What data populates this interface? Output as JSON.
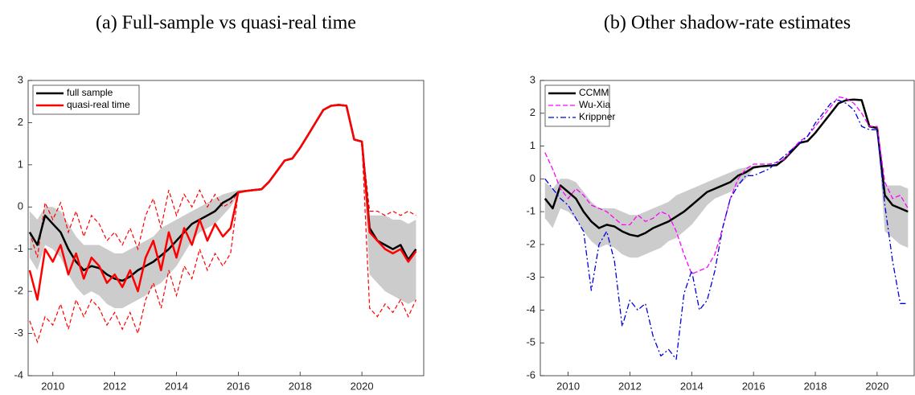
{
  "chart_data": [
    {
      "type": "line",
      "title": "(a) Full-sample vs quasi-real time",
      "x": [
        2009.25,
        2009.5,
        2009.75,
        2010,
        2010.25,
        2010.5,
        2010.75,
        2011,
        2011.25,
        2011.5,
        2011.75,
        2012,
        2012.25,
        2012.5,
        2012.75,
        2013,
        2013.25,
        2013.5,
        2013.75,
        2014,
        2014.25,
        2014.5,
        2014.75,
        2015,
        2015.25,
        2015.5,
        2015.75,
        2016,
        2016.25,
        2016.5,
        2016.75,
        2017,
        2017.25,
        2017.5,
        2017.75,
        2018,
        2018.25,
        2018.5,
        2018.75,
        2019,
        2019.25,
        2019.5,
        2019.75,
        2020,
        2020.25,
        2020.5,
        2020.75,
        2021,
        2021.25,
        2021.5,
        2021.75
      ],
      "xlim": [
        2009.2,
        2022
      ],
      "xticks": [
        2010,
        2012,
        2014,
        2016,
        2018,
        2020
      ],
      "ylim": [
        -4,
        3
      ],
      "yticks": [
        -4,
        -3,
        -2,
        -1,
        0,
        1,
        2,
        3
      ],
      "legend": "top-left",
      "series": [
        {
          "name": "full sample",
          "color": "#000000",
          "line_width": 2.5,
          "dash": "none",
          "values": [
            -0.6,
            -0.9,
            -0.2,
            -0.4,
            -0.6,
            -1.0,
            -1.3,
            -1.5,
            -1.4,
            -1.45,
            -1.6,
            -1.7,
            -1.75,
            -1.65,
            -1.5,
            -1.4,
            -1.3,
            -1.15,
            -1.0,
            -0.8,
            -0.6,
            -0.4,
            -0.3,
            -0.2,
            -0.1,
            0.1,
            0.2,
            0.35,
            0.38,
            0.4,
            0.42,
            0.6,
            0.85,
            1.1,
            1.15,
            1.4,
            1.7,
            2.0,
            2.3,
            2.4,
            2.42,
            2.4,
            1.6,
            1.55,
            -0.5,
            -0.8,
            -0.9,
            -1.0,
            -0.9,
            -1.25,
            -1.0
          ],
          "band_color": "#cccccc",
          "band_upper": [
            -0.1,
            -0.3,
            0.0,
            0.0,
            -0.1,
            -0.4,
            -0.7,
            -0.9,
            -0.9,
            -0.9,
            -1.0,
            -1.1,
            -1.1,
            -1.0,
            -0.9,
            -0.8,
            -0.7,
            -0.5,
            -0.4,
            -0.3,
            -0.2,
            -0.1,
            0.0,
            0.1,
            0.2,
            0.3,
            0.35,
            0.4,
            0.4,
            0.42,
            0.45,
            0.62,
            0.87,
            1.12,
            1.17,
            1.42,
            1.72,
            2.02,
            2.32,
            2.42,
            2.44,
            2.42,
            1.62,
            1.57,
            -0.2,
            -0.2,
            -0.2,
            -0.3,
            -0.3,
            -0.4,
            -0.3
          ],
          "band_lower": [
            -1.2,
            -1.5,
            -0.9,
            -1.0,
            -1.2,
            -1.6,
            -1.9,
            -2.1,
            -2.0,
            -2.1,
            -2.3,
            -2.4,
            -2.4,
            -2.3,
            -2.2,
            -2.1,
            -1.9,
            -1.8,
            -1.6,
            -1.4,
            -1.1,
            -0.8,
            -0.6,
            -0.5,
            -0.4,
            -0.2,
            0.0,
            0.3,
            0.36,
            0.38,
            0.4,
            0.58,
            0.83,
            1.08,
            1.13,
            1.38,
            1.68,
            1.98,
            2.28,
            2.38,
            2.4,
            2.38,
            1.58,
            1.53,
            -1.6,
            -1.8,
            -2.0,
            -2.1,
            -2.2,
            -2.3,
            -2.2
          ]
        },
        {
          "name": "quasi-real time",
          "color": "#ff0000",
          "line_width": 2.5,
          "dash": "none",
          "values": [
            -1.5,
            -2.2,
            -1.0,
            -1.3,
            -0.9,
            -1.6,
            -1.1,
            -1.7,
            -1.2,
            -1.4,
            -1.8,
            -1.6,
            -1.9,
            -1.5,
            -2.0,
            -1.2,
            -0.8,
            -1.5,
            -0.6,
            -1.2,
            -0.5,
            -0.9,
            -0.3,
            -0.8,
            -0.4,
            -0.7,
            -0.5,
            0.35,
            0.38,
            0.4,
            0.42,
            0.6,
            0.85,
            1.1,
            1.15,
            1.4,
            1.7,
            2.0,
            2.3,
            2.4,
            2.42,
            2.4,
            1.6,
            1.55,
            -0.6,
            -0.8,
            -1.0,
            -1.1,
            -1.0,
            -1.3,
            -1.05
          ],
          "bound_dash": "5,3",
          "bound_upper": [
            -0.6,
            -1.2,
            0.1,
            -0.3,
            0.1,
            -0.6,
            -0.1,
            -0.7,
            -0.2,
            -0.4,
            -0.8,
            -0.6,
            -0.9,
            -0.5,
            -1.0,
            -0.2,
            0.2,
            -0.5,
            0.4,
            -0.2,
            0.3,
            0.0,
            0.4,
            0.0,
            0.3,
            0.0,
            0.1,
            0.35,
            0.38,
            0.4,
            0.42,
            0.6,
            0.85,
            1.1,
            1.15,
            1.4,
            1.7,
            2.0,
            2.3,
            2.4,
            2.42,
            2.4,
            1.6,
            1.55,
            -0.1,
            -0.1,
            -0.2,
            -0.1,
            -0.2,
            -0.1,
            -0.2
          ],
          "bound_lower": [
            -2.7,
            -3.2,
            -2.6,
            -2.8,
            -2.3,
            -2.9,
            -2.2,
            -2.6,
            -2.2,
            -2.4,
            -2.8,
            -2.5,
            -2.9,
            -2.5,
            -3.0,
            -2.2,
            -1.8,
            -2.4,
            -1.5,
            -2.1,
            -1.4,
            -1.7,
            -1.0,
            -1.5,
            -1.1,
            -1.4,
            -1.1,
            0.35,
            0.38,
            0.4,
            0.42,
            0.6,
            0.85,
            1.1,
            1.15,
            1.4,
            1.7,
            2.0,
            2.3,
            2.4,
            2.42,
            2.4,
            1.6,
            1.55,
            -2.4,
            -2.6,
            -2.3,
            -2.5,
            -2.2,
            -2.6,
            -2.2
          ]
        }
      ]
    },
    {
      "type": "line",
      "title": "(b) Other shadow-rate estimates",
      "x": [
        2009.25,
        2009.5,
        2009.75,
        2010,
        2010.25,
        2010.5,
        2010.75,
        2011,
        2011.25,
        2011.5,
        2011.75,
        2012,
        2012.25,
        2012.5,
        2012.75,
        2013,
        2013.25,
        2013.5,
        2013.75,
        2014,
        2014.25,
        2014.5,
        2014.75,
        2015,
        2015.25,
        2015.5,
        2015.75,
        2016,
        2016.25,
        2016.5,
        2016.75,
        2017,
        2017.25,
        2017.5,
        2017.75,
        2018,
        2018.25,
        2018.5,
        2018.75,
        2019,
        2019.25,
        2019.5,
        2019.75,
        2020,
        2020.25,
        2020.5,
        2020.75,
        2021
      ],
      "xlim": [
        2009.1,
        2021.2
      ],
      "xticks": [
        2010,
        2012,
        2014,
        2016,
        2018,
        2020
      ],
      "ylim": [
        -6,
        3
      ],
      "yticks": [
        -6,
        -5,
        -4,
        -3,
        -2,
        -1,
        0,
        1,
        2,
        3
      ],
      "legend": "top-left",
      "series": [
        {
          "name": "CCMM",
          "color": "#000000",
          "line_width": 2.5,
          "dash": "none",
          "values": [
            -0.6,
            -0.9,
            -0.2,
            -0.4,
            -0.6,
            -1.0,
            -1.3,
            -1.5,
            -1.4,
            -1.45,
            -1.6,
            -1.7,
            -1.75,
            -1.65,
            -1.5,
            -1.4,
            -1.3,
            -1.15,
            -1.0,
            -0.8,
            -0.6,
            -0.4,
            -0.3,
            -0.2,
            -0.1,
            0.1,
            0.2,
            0.35,
            0.38,
            0.4,
            0.42,
            0.6,
            0.85,
            1.1,
            1.15,
            1.4,
            1.7,
            2.0,
            2.3,
            2.4,
            2.42,
            2.4,
            1.6,
            1.55,
            -0.5,
            -0.8,
            -0.9,
            -1.0
          ],
          "band_color": "#cccccc",
          "band_upper": [
            -0.1,
            -0.3,
            0.0,
            0.0,
            -0.1,
            -0.4,
            -0.7,
            -0.9,
            -0.9,
            -0.9,
            -1.0,
            -1.1,
            -1.1,
            -1.0,
            -0.9,
            -0.8,
            -0.7,
            -0.5,
            -0.4,
            -0.3,
            -0.2,
            -0.1,
            0.0,
            0.1,
            0.2,
            0.3,
            0.35,
            0.4,
            0.4,
            0.42,
            0.45,
            0.62,
            0.87,
            1.12,
            1.17,
            1.42,
            1.72,
            2.02,
            2.32,
            2.42,
            2.44,
            2.42,
            1.62,
            1.57,
            -0.2,
            -0.2,
            -0.2,
            -0.3
          ],
          "band_lower": [
            -1.2,
            -1.5,
            -0.9,
            -1.0,
            -1.2,
            -1.6,
            -1.9,
            -2.1,
            -2.0,
            -2.1,
            -2.3,
            -2.4,
            -2.4,
            -2.3,
            -2.2,
            -2.1,
            -1.9,
            -1.8,
            -1.6,
            -1.4,
            -1.1,
            -0.8,
            -0.6,
            -0.5,
            -0.4,
            -0.2,
            0.0,
            0.3,
            0.36,
            0.38,
            0.4,
            0.58,
            0.83,
            1.08,
            1.13,
            1.38,
            1.68,
            1.98,
            2.28,
            2.38,
            2.4,
            2.38,
            1.58,
            1.53,
            -1.6,
            -1.8,
            -2.0,
            -2.1
          ]
        },
        {
          "name": "Wu-Xia",
          "color": "#ff00ff",
          "line_width": 1.3,
          "dash": "6,3",
          "values": [
            0.8,
            0.3,
            -0.3,
            -0.6,
            -0.3,
            -0.5,
            -0.8,
            -0.9,
            -1.0,
            -1.2,
            -1.4,
            -1.4,
            -1.1,
            -1.3,
            -1.2,
            -1.0,
            -1.1,
            -1.6,
            -2.3,
            -2.9,
            -2.8,
            -2.7,
            -2.3,
            -1.5,
            -0.6,
            0.0,
            0.3,
            0.45,
            0.45,
            0.45,
            0.5,
            0.6,
            0.9,
            1.15,
            1.3,
            1.6,
            1.9,
            2.2,
            2.5,
            2.45,
            2.3,
            2.0,
            1.6,
            1.6,
            -0.1,
            -0.6,
            -0.5,
            -0.9
          ]
        },
        {
          "name": "Krippner",
          "color": "#0000dd",
          "line_width": 1.3,
          "dash": "7,3,2,3",
          "values": [
            0.0,
            -0.3,
            -0.6,
            -0.8,
            -1.2,
            -1.6,
            -3.4,
            -2.0,
            -1.6,
            -2.5,
            -4.5,
            -3.7,
            -4.0,
            -3.8,
            -4.8,
            -5.4,
            -5.2,
            -5.5,
            -3.5,
            -2.8,
            -4.0,
            -3.7,
            -2.8,
            -1.5,
            -0.6,
            -0.2,
            0.1,
            0.1,
            0.2,
            0.3,
            0.5,
            0.7,
            0.9,
            1.1,
            1.3,
            1.7,
            2.0,
            2.3,
            2.4,
            2.3,
            2.1,
            1.6,
            1.5,
            1.5,
            -0.8,
            -2.5,
            -3.8,
            -3.8
          ]
        }
      ]
    }
  ]
}
